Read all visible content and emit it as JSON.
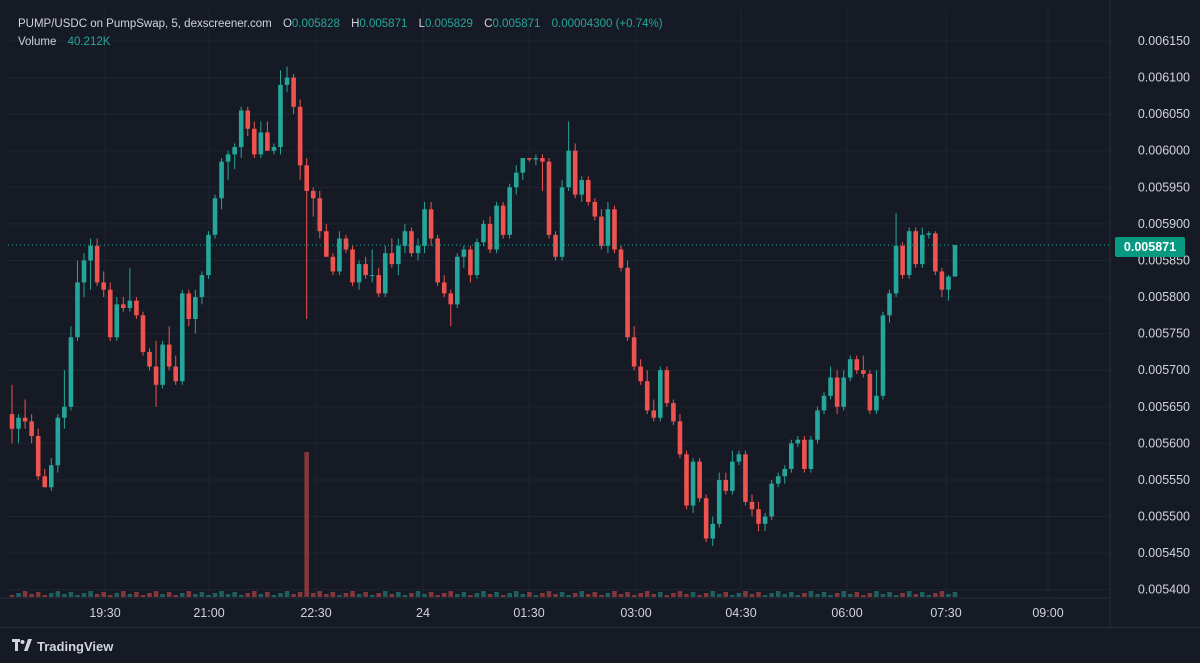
{
  "legend": {
    "symbol": "PUMP/USDC on PumpSwap, 5, dexscreener.com",
    "o_label": "O",
    "o_value": "0.005828",
    "h_label": "H",
    "h_value": "0.005871",
    "l_label": "L",
    "l_value": "0.005829",
    "c_label": "C",
    "c_value": "0.005871",
    "change": "0.00004300 (+0.74%)",
    "volume_label": "Volume",
    "volume_value": "40.212K"
  },
  "last_price_tag": "0.005871",
  "footer": {
    "brand": "TradingView"
  },
  "colors": {
    "background": "#161a25",
    "up": "#26a69a",
    "down": "#ef5350",
    "price_tag": "#089981",
    "text": "#d1d4dc"
  },
  "chart_data": {
    "type": "candlestick",
    "x_labels": [
      "19:30",
      "21:00",
      "22:30",
      "24",
      "01:30",
      "03:00",
      "04:30",
      "06:00",
      "07:30",
      "09:00"
    ],
    "y_labels": [
      "0.006150",
      "0.006100",
      "0.006050",
      "0.006000",
      "0.005950",
      "0.005900",
      "0.005850",
      "0.005800",
      "0.005750",
      "0.005700",
      "0.005650",
      "0.005600",
      "0.005550",
      "0.005500",
      "0.005450",
      "0.005400"
    ],
    "ylim": [
      0.00539,
      0.006165
    ],
    "last_price": 0.005871,
    "candles": [
      {
        "o": 0.00564,
        "h": 0.00568,
        "l": 0.0056,
        "c": 0.00562
      },
      {
        "o": 0.00562,
        "h": 0.00564,
        "l": 0.0056,
        "c": 0.005635
      },
      {
        "o": 0.005635,
        "h": 0.00566,
        "l": 0.00562,
        "c": 0.00563
      },
      {
        "o": 0.00563,
        "h": 0.00564,
        "l": 0.0056,
        "c": 0.00561
      },
      {
        "o": 0.00561,
        "h": 0.00562,
        "l": 0.00555,
        "c": 0.005555
      },
      {
        "o": 0.005555,
        "h": 0.005565,
        "l": 0.00554,
        "c": 0.00554
      },
      {
        "o": 0.00554,
        "h": 0.00558,
        "l": 0.005535,
        "c": 0.00557
      },
      {
        "o": 0.00557,
        "h": 0.00564,
        "l": 0.00556,
        "c": 0.005635
      },
      {
        "o": 0.005635,
        "h": 0.0057,
        "l": 0.00562,
        "c": 0.00565
      },
      {
        "o": 0.00565,
        "h": 0.00576,
        "l": 0.005645,
        "c": 0.005745
      },
      {
        "o": 0.005745,
        "h": 0.00585,
        "l": 0.00574,
        "c": 0.00582
      },
      {
        "o": 0.00582,
        "h": 0.00586,
        "l": 0.0058,
        "c": 0.00585
      },
      {
        "o": 0.00585,
        "h": 0.00588,
        "l": 0.00581,
        "c": 0.00587
      },
      {
        "o": 0.00587,
        "h": 0.00588,
        "l": 0.005815,
        "c": 0.00582
      },
      {
        "o": 0.00582,
        "h": 0.005835,
        "l": 0.0058,
        "c": 0.00581
      },
      {
        "o": 0.00581,
        "h": 0.00582,
        "l": 0.00574,
        "c": 0.005745
      },
      {
        "o": 0.005745,
        "h": 0.0058,
        "l": 0.00574,
        "c": 0.00579
      },
      {
        "o": 0.00579,
        "h": 0.0058,
        "l": 0.00578,
        "c": 0.005785
      },
      {
        "o": 0.005785,
        "h": 0.00584,
        "l": 0.00578,
        "c": 0.005795
      },
      {
        "o": 0.005795,
        "h": 0.0058,
        "l": 0.00577,
        "c": 0.005775
      },
      {
        "o": 0.005775,
        "h": 0.00578,
        "l": 0.00572,
        "c": 0.005725
      },
      {
        "o": 0.005725,
        "h": 0.00573,
        "l": 0.0057,
        "c": 0.005705
      },
      {
        "o": 0.005705,
        "h": 0.00574,
        "l": 0.00565,
        "c": 0.00568
      },
      {
        "o": 0.00568,
        "h": 0.00574,
        "l": 0.005675,
        "c": 0.005735
      },
      {
        "o": 0.005735,
        "h": 0.00576,
        "l": 0.0057,
        "c": 0.005705
      },
      {
        "o": 0.005705,
        "h": 0.00572,
        "l": 0.00568,
        "c": 0.005685
      },
      {
        "o": 0.005685,
        "h": 0.00581,
        "l": 0.00568,
        "c": 0.005805
      },
      {
        "o": 0.005805,
        "h": 0.00581,
        "l": 0.00576,
        "c": 0.00577
      },
      {
        "o": 0.00577,
        "h": 0.00581,
        "l": 0.00575,
        "c": 0.0058
      },
      {
        "o": 0.0058,
        "h": 0.005835,
        "l": 0.00579,
        "c": 0.00583
      },
      {
        "o": 0.00583,
        "h": 0.00589,
        "l": 0.005825,
        "c": 0.005885
      },
      {
        "o": 0.005885,
        "h": 0.00594,
        "l": 0.00588,
        "c": 0.005935
      },
      {
        "o": 0.005935,
        "h": 0.00599,
        "l": 0.00592,
        "c": 0.005985
      },
      {
        "o": 0.005985,
        "h": 0.006,
        "l": 0.00596,
        "c": 0.005995
      },
      {
        "o": 0.005995,
        "h": 0.00601,
        "l": 0.005975,
        "c": 0.006005
      },
      {
        "o": 0.006005,
        "h": 0.00606,
        "l": 0.00599,
        "c": 0.006055
      },
      {
        "o": 0.006055,
        "h": 0.00606,
        "l": 0.00602,
        "c": 0.00603
      },
      {
        "o": 0.00603,
        "h": 0.00604,
        "l": 0.00599,
        "c": 0.005995
      },
      {
        "o": 0.005995,
        "h": 0.00604,
        "l": 0.00599,
        "c": 0.006025
      },
      {
        "o": 0.006025,
        "h": 0.00604,
        "l": 0.006,
        "c": 0.006
      },
      {
        "o": 0.006,
        "h": 0.00601,
        "l": 0.005995,
        "c": 0.006005
      },
      {
        "o": 0.006005,
        "h": 0.00611,
        "l": 0.005995,
        "c": 0.00609
      },
      {
        "o": 0.00609,
        "h": 0.006115,
        "l": 0.00608,
        "c": 0.0061
      },
      {
        "o": 0.0061,
        "h": 0.006105,
        "l": 0.00605,
        "c": 0.00606
      },
      {
        "o": 0.00606,
        "h": 0.00607,
        "l": 0.00596,
        "c": 0.00598
      },
      {
        "o": 0.00598,
        "h": 0.00599,
        "l": 0.00577,
        "c": 0.005945
      },
      {
        "o": 0.005945,
        "h": 0.00595,
        "l": 0.00591,
        "c": 0.005935
      },
      {
        "o": 0.005935,
        "h": 0.005945,
        "l": 0.00588,
        "c": 0.00589
      },
      {
        "o": 0.00589,
        "h": 0.0059,
        "l": 0.005855,
        "c": 0.005855
      },
      {
        "o": 0.005855,
        "h": 0.00586,
        "l": 0.00583,
        "c": 0.005835
      },
      {
        "o": 0.005835,
        "h": 0.00589,
        "l": 0.00583,
        "c": 0.00588
      },
      {
        "o": 0.00588,
        "h": 0.005885,
        "l": 0.00586,
        "c": 0.005865
      },
      {
        "o": 0.005865,
        "h": 0.00587,
        "l": 0.005815,
        "c": 0.00582
      },
      {
        "o": 0.00582,
        "h": 0.00585,
        "l": 0.00581,
        "c": 0.005845
      },
      {
        "o": 0.005845,
        "h": 0.005855,
        "l": 0.005825,
        "c": 0.00583
      },
      {
        "o": 0.00583,
        "h": 0.005865,
        "l": 0.00582,
        "c": 0.00583
      },
      {
        "o": 0.00583,
        "h": 0.00584,
        "l": 0.0058,
        "c": 0.005805
      },
      {
        "o": 0.005805,
        "h": 0.00587,
        "l": 0.0058,
        "c": 0.00586
      },
      {
        "o": 0.00586,
        "h": 0.00588,
        "l": 0.00584,
        "c": 0.005845
      },
      {
        "o": 0.005845,
        "h": 0.00588,
        "l": 0.00583,
        "c": 0.00587
      },
      {
        "o": 0.00587,
        "h": 0.0059,
        "l": 0.00586,
        "c": 0.00589
      },
      {
        "o": 0.00589,
        "h": 0.005895,
        "l": 0.005855,
        "c": 0.00586
      },
      {
        "o": 0.00586,
        "h": 0.00588,
        "l": 0.00585,
        "c": 0.00587
      },
      {
        "o": 0.00587,
        "h": 0.00593,
        "l": 0.00586,
        "c": 0.00592
      },
      {
        "o": 0.00592,
        "h": 0.00593,
        "l": 0.00587,
        "c": 0.00588
      },
      {
        "o": 0.00588,
        "h": 0.005885,
        "l": 0.005815,
        "c": 0.00582
      },
      {
        "o": 0.00582,
        "h": 0.00583,
        "l": 0.0058,
        "c": 0.005805
      },
      {
        "o": 0.005805,
        "h": 0.00581,
        "l": 0.00576,
        "c": 0.00579
      },
      {
        "o": 0.00579,
        "h": 0.00586,
        "l": 0.005785,
        "c": 0.005855
      },
      {
        "o": 0.005855,
        "h": 0.00587,
        "l": 0.00584,
        "c": 0.005865
      },
      {
        "o": 0.005865,
        "h": 0.00587,
        "l": 0.00582,
        "c": 0.00583
      },
      {
        "o": 0.00583,
        "h": 0.00588,
        "l": 0.005825,
        "c": 0.005875
      },
      {
        "o": 0.005875,
        "h": 0.005905,
        "l": 0.00587,
        "c": 0.0059
      },
      {
        "o": 0.0059,
        "h": 0.00591,
        "l": 0.00586,
        "c": 0.005865
      },
      {
        "o": 0.005865,
        "h": 0.00593,
        "l": 0.00586,
        "c": 0.005925
      },
      {
        "o": 0.005925,
        "h": 0.00593,
        "l": 0.00588,
        "c": 0.005885
      },
      {
        "o": 0.005885,
        "h": 0.005955,
        "l": 0.00588,
        "c": 0.00595
      },
      {
        "o": 0.00595,
        "h": 0.00598,
        "l": 0.00594,
        "c": 0.00597
      },
      {
        "o": 0.00597,
        "h": 0.00599,
        "l": 0.00596,
        "c": 0.00599
      },
      {
        "o": 0.00599,
        "h": 0.00599,
        "l": 0.005985,
        "c": 0.005988
      },
      {
        "o": 0.005988,
        "h": 0.005995,
        "l": 0.00598,
        "c": 0.00599
      },
      {
        "o": 0.00599,
        "h": 0.005995,
        "l": 0.005945,
        "c": 0.005985
      },
      {
        "o": 0.005985,
        "h": 0.00599,
        "l": 0.00588,
        "c": 0.005885
      },
      {
        "o": 0.005885,
        "h": 0.00589,
        "l": 0.00585,
        "c": 0.005855
      },
      {
        "o": 0.005855,
        "h": 0.00596,
        "l": 0.00585,
        "c": 0.00595
      },
      {
        "o": 0.00595,
        "h": 0.00604,
        "l": 0.005945,
        "c": 0.006
      },
      {
        "o": 0.006,
        "h": 0.00601,
        "l": 0.005935,
        "c": 0.00594
      },
      {
        "o": 0.00594,
        "h": 0.005965,
        "l": 0.00593,
        "c": 0.00596
      },
      {
        "o": 0.00596,
        "h": 0.005965,
        "l": 0.005925,
        "c": 0.00593
      },
      {
        "o": 0.00593,
        "h": 0.005935,
        "l": 0.005905,
        "c": 0.00591
      },
      {
        "o": 0.00591,
        "h": 0.00592,
        "l": 0.005865,
        "c": 0.00587
      },
      {
        "o": 0.00587,
        "h": 0.00593,
        "l": 0.00586,
        "c": 0.00592
      },
      {
        "o": 0.00592,
        "h": 0.005925,
        "l": 0.00586,
        "c": 0.005865
      },
      {
        "o": 0.005865,
        "h": 0.00587,
        "l": 0.005835,
        "c": 0.00584
      },
      {
        "o": 0.00584,
        "h": 0.00585,
        "l": 0.00574,
        "c": 0.005745
      },
      {
        "o": 0.005745,
        "h": 0.00576,
        "l": 0.0057,
        "c": 0.005705
      },
      {
        "o": 0.005705,
        "h": 0.005715,
        "l": 0.00568,
        "c": 0.005685
      },
      {
        "o": 0.005685,
        "h": 0.0057,
        "l": 0.00564,
        "c": 0.005645
      },
      {
        "o": 0.005645,
        "h": 0.00566,
        "l": 0.00563,
        "c": 0.005635
      },
      {
        "o": 0.005635,
        "h": 0.005705,
        "l": 0.00563,
        "c": 0.0057
      },
      {
        "o": 0.0057,
        "h": 0.005705,
        "l": 0.00565,
        "c": 0.005655
      },
      {
        "o": 0.005655,
        "h": 0.00566,
        "l": 0.005625,
        "c": 0.00563
      },
      {
        "o": 0.00563,
        "h": 0.00564,
        "l": 0.00558,
        "c": 0.005585
      },
      {
        "o": 0.005585,
        "h": 0.00559,
        "l": 0.00551,
        "c": 0.005515
      },
      {
        "o": 0.005515,
        "h": 0.00558,
        "l": 0.005505,
        "c": 0.005575
      },
      {
        "o": 0.005575,
        "h": 0.00558,
        "l": 0.00552,
        "c": 0.005525
      },
      {
        "o": 0.005525,
        "h": 0.00553,
        "l": 0.005465,
        "c": 0.00547
      },
      {
        "o": 0.00547,
        "h": 0.0055,
        "l": 0.00546,
        "c": 0.00549
      },
      {
        "o": 0.00549,
        "h": 0.00556,
        "l": 0.005485,
        "c": 0.00555
      },
      {
        "o": 0.00555,
        "h": 0.00556,
        "l": 0.00553,
        "c": 0.005535
      },
      {
        "o": 0.005535,
        "h": 0.00559,
        "l": 0.00553,
        "c": 0.005575
      },
      {
        "o": 0.005575,
        "h": 0.00559,
        "l": 0.00557,
        "c": 0.005585
      },
      {
        "o": 0.005585,
        "h": 0.00559,
        "l": 0.005515,
        "c": 0.00552
      },
      {
        "o": 0.00552,
        "h": 0.00553,
        "l": 0.0055,
        "c": 0.00551
      },
      {
        "o": 0.00551,
        "h": 0.00552,
        "l": 0.00548,
        "c": 0.00549
      },
      {
        "o": 0.00549,
        "h": 0.005505,
        "l": 0.00548,
        "c": 0.0055
      },
      {
        "o": 0.0055,
        "h": 0.00555,
        "l": 0.005495,
        "c": 0.005545
      },
      {
        "o": 0.005545,
        "h": 0.00556,
        "l": 0.00554,
        "c": 0.005555
      },
      {
        "o": 0.005555,
        "h": 0.00557,
        "l": 0.005545,
        "c": 0.005565
      },
      {
        "o": 0.005565,
        "h": 0.005605,
        "l": 0.00556,
        "c": 0.0056
      },
      {
        "o": 0.0056,
        "h": 0.00561,
        "l": 0.005595,
        "c": 0.005605
      },
      {
        "o": 0.005605,
        "h": 0.00561,
        "l": 0.00556,
        "c": 0.005565
      },
      {
        "o": 0.005565,
        "h": 0.00561,
        "l": 0.00556,
        "c": 0.005605
      },
      {
        "o": 0.005605,
        "h": 0.00565,
        "l": 0.0056,
        "c": 0.005645
      },
      {
        "o": 0.005645,
        "h": 0.00567,
        "l": 0.00564,
        "c": 0.005665
      },
      {
        "o": 0.005665,
        "h": 0.005705,
        "l": 0.00566,
        "c": 0.00569
      },
      {
        "o": 0.00569,
        "h": 0.0057,
        "l": 0.00564,
        "c": 0.00565
      },
      {
        "o": 0.00565,
        "h": 0.0057,
        "l": 0.005645,
        "c": 0.00569
      },
      {
        "o": 0.00569,
        "h": 0.00572,
        "l": 0.005685,
        "c": 0.005715
      },
      {
        "o": 0.005715,
        "h": 0.00572,
        "l": 0.005695,
        "c": 0.0057
      },
      {
        "o": 0.0057,
        "h": 0.00572,
        "l": 0.00569,
        "c": 0.005695
      },
      {
        "o": 0.005695,
        "h": 0.0057,
        "l": 0.00564,
        "c": 0.005645
      },
      {
        "o": 0.005645,
        "h": 0.0057,
        "l": 0.00564,
        "c": 0.005665
      },
      {
        "o": 0.005665,
        "h": 0.00578,
        "l": 0.00566,
        "c": 0.005775
      },
      {
        "o": 0.005775,
        "h": 0.00581,
        "l": 0.005765,
        "c": 0.005805
      },
      {
        "o": 0.005805,
        "h": 0.005915,
        "l": 0.0058,
        "c": 0.00587
      },
      {
        "o": 0.00587,
        "h": 0.005875,
        "l": 0.005825,
        "c": 0.00583
      },
      {
        "o": 0.00583,
        "h": 0.005895,
        "l": 0.005825,
        "c": 0.00589
      },
      {
        "o": 0.00589,
        "h": 0.005895,
        "l": 0.00584,
        "c": 0.005845
      },
      {
        "o": 0.005845,
        "h": 0.005895,
        "l": 0.00584,
        "c": 0.005885
      },
      {
        "o": 0.005885,
        "h": 0.00589,
        "l": 0.00588,
        "c": 0.005887
      },
      {
        "o": 0.005887,
        "h": 0.00589,
        "l": 0.00583,
        "c": 0.005835
      },
      {
        "o": 0.005835,
        "h": 0.00584,
        "l": 0.0058,
        "c": 0.00581
      },
      {
        "o": 0.00581,
        "h": 0.00583,
        "l": 0.005795,
        "c": 0.005828
      },
      {
        "o": 0.005828,
        "h": 0.005871,
        "l": 0.005829,
        "c": 0.005871
      }
    ],
    "volume_spike_index": 45
  }
}
